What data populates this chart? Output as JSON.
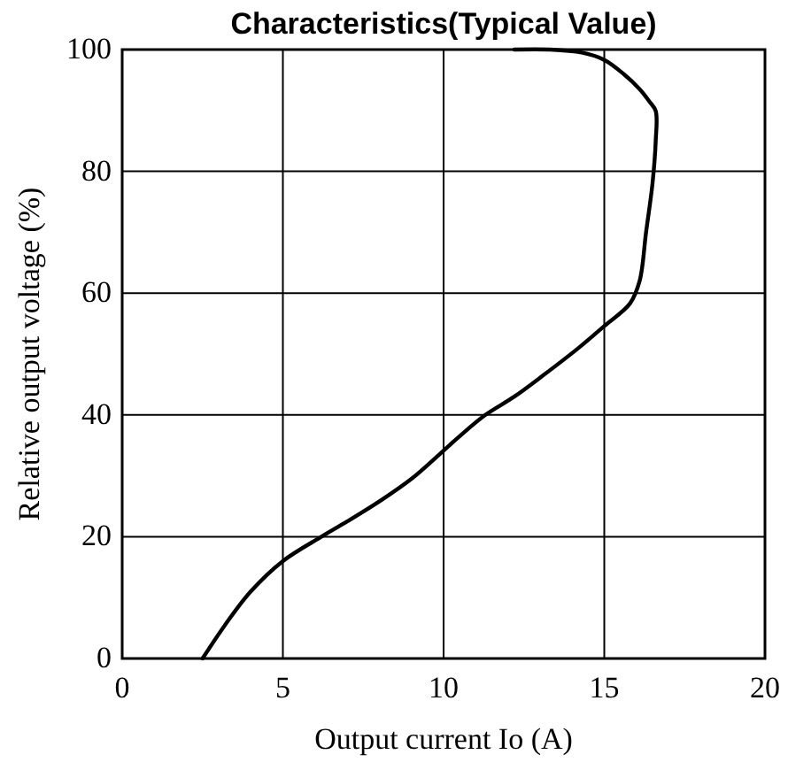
{
  "chart_data": {
    "type": "line",
    "title": "Characteristics(Typical Value)",
    "xlabel": "Output current Io (A)",
    "ylabel": "Relative output voltage (%)",
    "xlim": [
      0,
      20
    ],
    "xticks": [
      0,
      5,
      10,
      15,
      20
    ],
    "ylim": [
      0,
      100
    ],
    "yticks": [
      0,
      20,
      40,
      60,
      80,
      100
    ],
    "grid": true,
    "marker": "none",
    "line_style": "solid",
    "series": [
      {
        "color": "#000000",
        "x": [
          12.2,
          13.3,
          14.3,
          15.0,
          15.6,
          16.1,
          16.4,
          16.6,
          16.6,
          16.5,
          16.3,
          16.1,
          15.8,
          15.0,
          14.2,
          13.1,
          12.2,
          11.3,
          10.5,
          9.97,
          9.0,
          8.06,
          7.0,
          6.2,
          5.0,
          4.0,
          3.2,
          2.5
        ],
        "values": [
          100,
          100,
          99.5,
          98.3,
          96,
          93.5,
          91.5,
          89.9,
          85,
          78,
          70,
          62,
          58.3,
          54.6,
          51,
          46.5,
          43,
          40,
          36.5,
          34,
          29.5,
          26,
          22.5,
          20,
          16,
          11,
          5.5,
          0
        ]
      }
    ]
  }
}
